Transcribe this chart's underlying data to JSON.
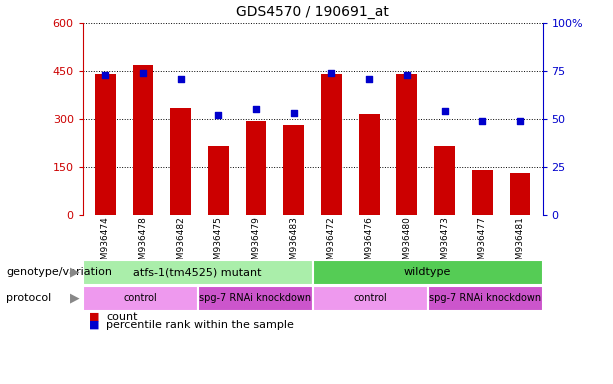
{
  "title": "GDS4570 / 190691_at",
  "samples": [
    "GSM936474",
    "GSM936478",
    "GSM936482",
    "GSM936475",
    "GSM936479",
    "GSM936483",
    "GSM936472",
    "GSM936476",
    "GSM936480",
    "GSM936473",
    "GSM936477",
    "GSM936481"
  ],
  "counts": [
    440,
    470,
    335,
    215,
    295,
    280,
    440,
    315,
    440,
    215,
    140,
    130
  ],
  "percentile_ranks": [
    73,
    74,
    71,
    52,
    55,
    53,
    74,
    71,
    73,
    54,
    49,
    49
  ],
  "ylim_left": [
    0,
    600
  ],
  "ylim_right": [
    0,
    100
  ],
  "yticks_left": [
    0,
    150,
    300,
    450,
    600
  ],
  "yticks_right": [
    0,
    25,
    50,
    75,
    100
  ],
  "bar_color": "#cc0000",
  "dot_color": "#0000cc",
  "genotype_groups": [
    {
      "label": "atfs-1(tm4525) mutant",
      "start": 0,
      "end": 6,
      "color": "#aaeeaa"
    },
    {
      "label": "wildtype",
      "start": 6,
      "end": 12,
      "color": "#55cc55"
    }
  ],
  "protocol_groups": [
    {
      "label": "control",
      "start": 0,
      "end": 3,
      "color": "#ee99ee"
    },
    {
      "label": "spg-7 RNAi knockdown",
      "start": 3,
      "end": 6,
      "color": "#cc55cc"
    },
    {
      "label": "control",
      "start": 6,
      "end": 9,
      "color": "#ee99ee"
    },
    {
      "label": "spg-7 RNAi knockdown",
      "start": 9,
      "end": 12,
      "color": "#cc55cc"
    }
  ],
  "legend_count_label": "count",
  "legend_percentile_label": "percentile rank within the sample",
  "genotype_row_label": "genotype/variation",
  "protocol_row_label": "protocol",
  "left_yaxis_color": "#cc0000",
  "right_yaxis_color": "#0000cc",
  "tick_label_area_color": "#cccccc",
  "right_ytick_labels": [
    "0",
    "25",
    "50",
    "75",
    "100%"
  ]
}
